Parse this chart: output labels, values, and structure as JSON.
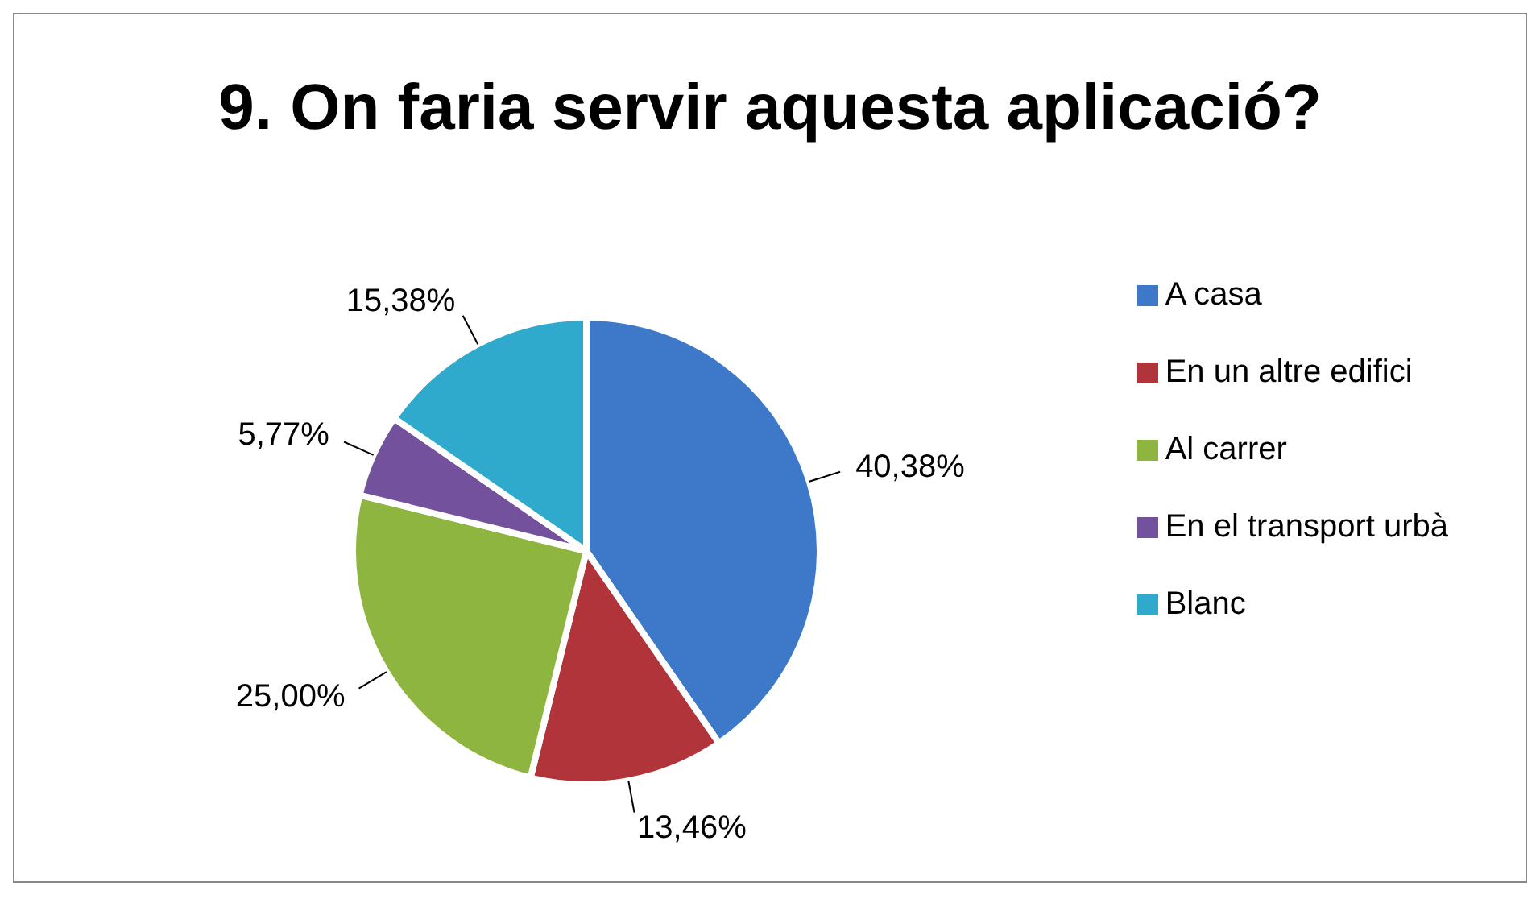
{
  "chart_data": {
    "type": "pie",
    "title": "9. On faria servir aquesta aplicació?",
    "categories": [
      "A casa",
      "En un altre edifici",
      "Al carrer",
      "En el transport urbà",
      "Blanc"
    ],
    "values": [
      40.38,
      13.46,
      25.0,
      5.77,
      15.38
    ],
    "colors": [
      "#3d78c9",
      "#b0343a",
      "#8fb541",
      "#74519c",
      "#2fa9cc"
    ],
    "value_labels": [
      "40,38%",
      "13,46%",
      "25,00%",
      "5,77%",
      "15,38%"
    ],
    "legend": "right"
  }
}
